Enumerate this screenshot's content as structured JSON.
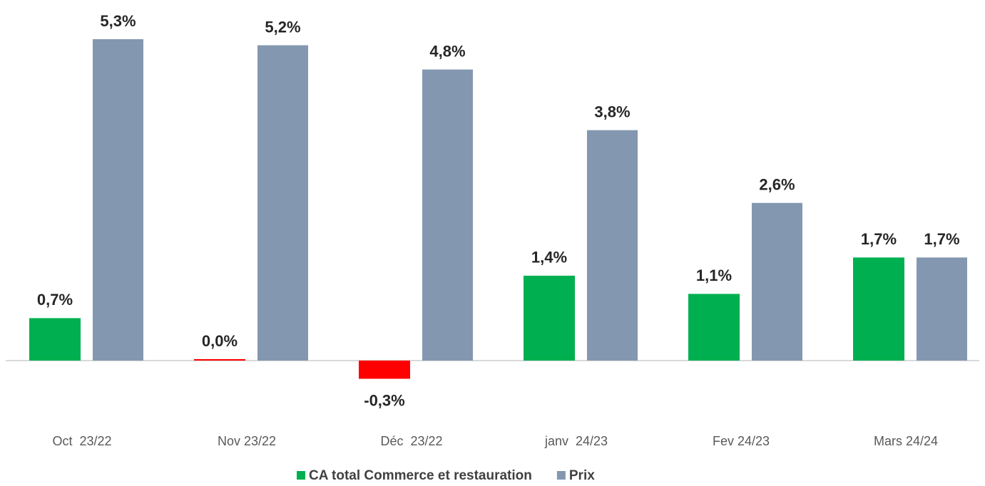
{
  "chart_data": {
    "type": "bar",
    "categories": [
      "Oct  23/22",
      "Nov 23/22",
      "Déc  23/22",
      "janv  24/23",
      "Fev 24/23",
      "Mars 24/24"
    ],
    "series": [
      {
        "name": "CA total Commerce et restauration",
        "color": "#00b050",
        "colors": [
          "#00b050",
          "#ff0000",
          "#ff0000",
          "#00b050",
          "#00b050",
          "#00b050"
        ],
        "values": [
          0.7,
          0.0,
          -0.3,
          1.4,
          1.1,
          1.7
        ],
        "value_labels": [
          "0,7%",
          "0,0%",
          "-0,3%",
          "1,4%",
          "1,1%",
          "1,7%"
        ]
      },
      {
        "name": "Prix",
        "color": "#8497b0",
        "values": [
          5.3,
          5.2,
          4.8,
          3.8,
          2.6,
          1.7
        ],
        "value_labels": [
          "5,3%",
          "5,2%",
          "4,8%",
          "3,8%",
          "2,6%",
          "1,7%"
        ]
      }
    ],
    "legend": "bottom"
  }
}
